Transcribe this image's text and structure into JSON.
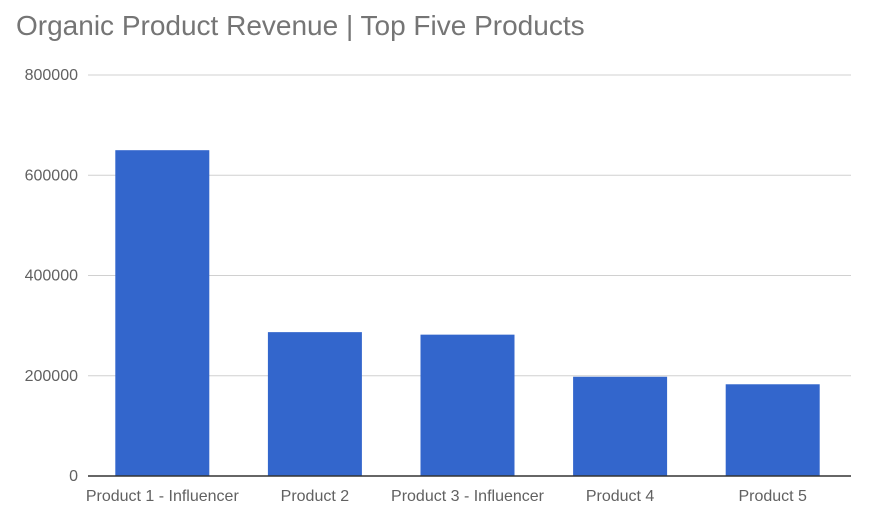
{
  "chart_data": {
    "type": "bar",
    "title": "Organic Product Revenue | Top Five Products",
    "categories": [
      "Product 1 - Influencer",
      "Product 2",
      "Product 3 - Influencer",
      "Product 4",
      "Product 5"
    ],
    "values": [
      650000,
      287000,
      282000,
      198000,
      183000
    ],
    "ylim": [
      0,
      800000
    ],
    "yticks": [
      "0",
      "200000",
      "400000",
      "600000",
      "800000"
    ],
    "xlabel": "",
    "ylabel": "",
    "grid": true,
    "legend": "none",
    "colors": {
      "bar": "#3366cc",
      "grid": "#d0d0d0",
      "axis": "#333333",
      "title": "#757575",
      "tick": "#616161"
    }
  }
}
